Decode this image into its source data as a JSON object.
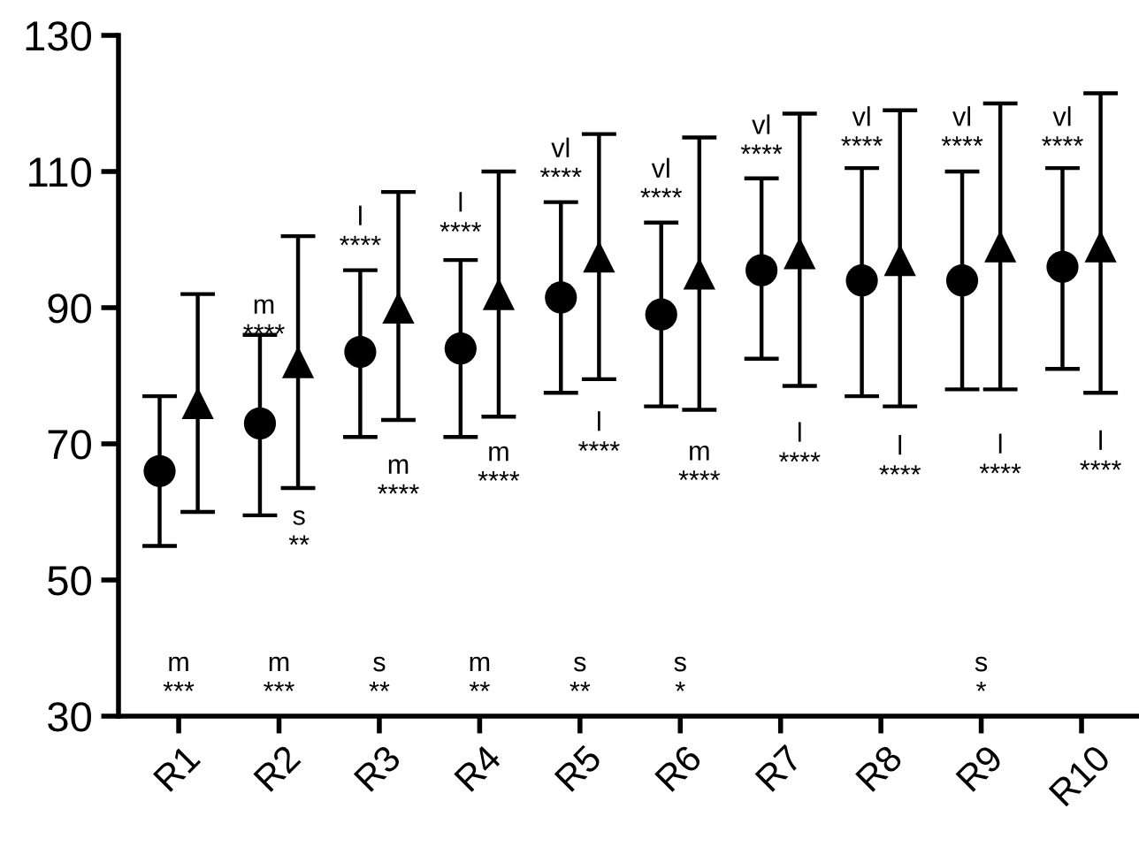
{
  "chart_data": {
    "type": "scatter",
    "categories": [
      "R1",
      "R2",
      "R3",
      "R4",
      "R5",
      "R6",
      "R7",
      "R8",
      "R9",
      "R10"
    ],
    "series": [
      {
        "color": "#000000",
        "marker": "circle",
        "values": [
          66,
          73,
          83.5,
          84,
          91.5,
          89,
          95.5,
          94,
          94,
          96
        ],
        "errors": [
          [
            55,
            77
          ],
          [
            59.5,
            86
          ],
          [
            71,
            95.5
          ],
          [
            71,
            97
          ],
          [
            77.5,
            105.5
          ],
          [
            75.5,
            102.5
          ],
          [
            82.5,
            109
          ],
          [
            77,
            110.5
          ],
          [
            78,
            110
          ],
          [
            81,
            110.5
          ]
        ]
      },
      {
        "color": "#000000",
        "marker": "triangle",
        "values": [
          76,
          82,
          90,
          92,
          97.5,
          95,
          98,
          97,
          99,
          99
        ],
        "errors": [
          [
            60,
            92
          ],
          [
            63.5,
            100.5
          ],
          [
            73.5,
            107
          ],
          [
            74,
            110
          ],
          [
            79.5,
            115.5
          ],
          [
            75,
            115
          ],
          [
            78.5,
            118.5
          ],
          [
            75.5,
            119
          ],
          [
            78,
            120
          ],
          [
            77.5,
            121.5
          ]
        ]
      }
    ],
    "ylim": [
      30,
      130
    ],
    "yticks": [
      30,
      50,
      70,
      90,
      110,
      130
    ],
    "grid": false,
    "legend": false,
    "annotations": [
      "m\n***",
      "m\n****",
      "s\n**",
      "m\n***",
      "l\n****",
      "m\n****",
      "s\n**",
      "l\n****",
      "m\n****",
      "m\n**",
      "vl\n****",
      "l\n****",
      "s\n**",
      "vl\n****",
      "m\n****",
      "s\n*",
      "vl\n****",
      "l\n****",
      "vl\n****",
      "l\n****",
      "vl\n****",
      "l\n****",
      "s\n*",
      "vl\n****",
      "l\n****"
    ]
  }
}
